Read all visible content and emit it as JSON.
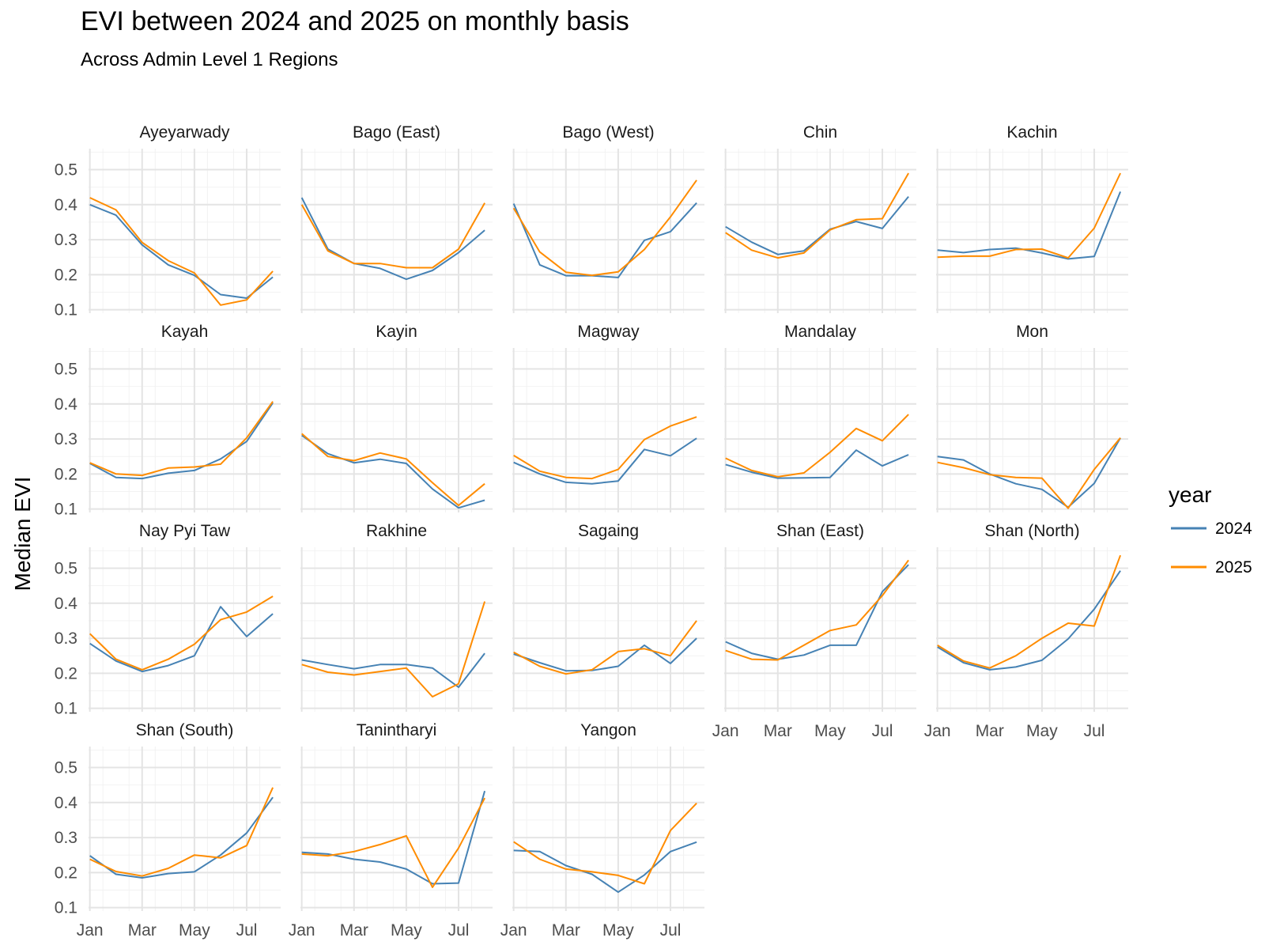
{
  "chart_data": {
    "type": "line",
    "title": "EVI between 2024 and 2025 on monthly basis",
    "subtitle": "Across Admin Level 1 Regions",
    "xlabel": "",
    "ylabel": "Median EVI",
    "x": [
      1,
      2,
      3,
      4,
      5,
      6,
      7,
      8
    ],
    "x_ticks": [
      {
        "value": 1,
        "label": "Jan"
      },
      {
        "value": 3,
        "label": "Mar"
      },
      {
        "value": 5,
        "label": "May"
      },
      {
        "value": 7,
        "label": "Jul"
      }
    ],
    "y_ticks": [
      {
        "value": 0.1,
        "label": "0.1"
      },
      {
        "value": 0.2,
        "label": "0.2"
      },
      {
        "value": 0.3,
        "label": "0.3"
      },
      {
        "value": 0.4,
        "label": "0.4"
      },
      {
        "value": 0.5,
        "label": "0.5"
      }
    ],
    "xlim": [
      0.95,
      8.3
    ],
    "ylim": [
      0.09,
      0.56
    ],
    "grid": true,
    "legend": {
      "title": "year",
      "position": "right",
      "items": [
        {
          "name": "2024",
          "color": "#4682b4"
        },
        {
          "name": "2025",
          "color": "#ff8c00"
        }
      ]
    },
    "panels": [
      {
        "name": "Ayeyarwady",
        "series": [
          {
            "name": "2024",
            "values": [
              0.4,
              0.37,
              0.285,
              0.228,
              0.198,
              0.143,
              0.133,
              0.193
            ]
          },
          {
            "name": "2025",
            "values": [
              0.42,
              0.385,
              0.292,
              0.24,
              0.205,
              0.113,
              0.128,
              0.21
            ]
          }
        ]
      },
      {
        "name": "Bago (East)",
        "series": [
          {
            "name": "2024",
            "values": [
              0.42,
              0.273,
              0.232,
              0.218,
              0.187,
              0.212,
              0.263,
              0.327
            ]
          },
          {
            "name": "2025",
            "values": [
              0.4,
              0.268,
              0.232,
              0.232,
              0.22,
              0.22,
              0.273,
              0.405
            ]
          }
        ]
      },
      {
        "name": "Bago (West)",
        "series": [
          {
            "name": "2024",
            "values": [
              0.403,
              0.228,
              0.197,
              0.197,
              0.192,
              0.298,
              0.323,
              0.405
            ]
          },
          {
            "name": "2025",
            "values": [
              0.39,
              0.265,
              0.207,
              0.198,
              0.208,
              0.272,
              0.365,
              0.47
            ]
          }
        ]
      },
      {
        "name": "Chin",
        "series": [
          {
            "name": "2024",
            "values": [
              0.337,
              0.293,
              0.258,
              0.268,
              0.33,
              0.352,
              0.332,
              0.423
            ]
          },
          {
            "name": "2025",
            "values": [
              0.32,
              0.27,
              0.248,
              0.262,
              0.328,
              0.357,
              0.36,
              0.49
            ]
          }
        ]
      },
      {
        "name": "Kachin",
        "series": [
          {
            "name": "2024",
            "values": [
              0.27,
              0.263,
              0.272,
              0.276,
              0.262,
              0.245,
              0.252,
              0.437
            ]
          },
          {
            "name": "2025",
            "values": [
              0.25,
              0.253,
              0.253,
              0.272,
              0.273,
              0.248,
              0.333,
              0.49
            ]
          }
        ]
      },
      {
        "name": "Kayah",
        "series": [
          {
            "name": "2024",
            "values": [
              0.23,
              0.19,
              0.187,
              0.202,
              0.21,
              0.243,
              0.293,
              0.403
            ]
          },
          {
            "name": "2025",
            "values": [
              0.232,
              0.2,
              0.196,
              0.217,
              0.22,
              0.228,
              0.303,
              0.407
            ]
          }
        ]
      },
      {
        "name": "Kayin",
        "series": [
          {
            "name": "2024",
            "values": [
              0.31,
              0.258,
              0.232,
              0.242,
              0.23,
              0.157,
              0.103,
              0.125
            ]
          },
          {
            "name": "2025",
            "values": [
              0.315,
              0.25,
              0.238,
              0.26,
              0.243,
              0.175,
              0.11,
              0.172
            ]
          }
        ]
      },
      {
        "name": "Magway",
        "series": [
          {
            "name": "2024",
            "values": [
              0.233,
              0.2,
              0.176,
              0.172,
              0.18,
              0.27,
              0.252,
              0.302
            ]
          },
          {
            "name": "2025",
            "values": [
              0.253,
              0.208,
              0.19,
              0.187,
              0.213,
              0.298,
              0.337,
              0.363
            ]
          }
        ]
      },
      {
        "name": "Mandalay",
        "series": [
          {
            "name": "2024",
            "values": [
              0.227,
              0.205,
              0.188,
              0.189,
              0.19,
              0.268,
              0.223,
              0.255
            ]
          },
          {
            "name": "2025",
            "values": [
              0.245,
              0.21,
              0.192,
              0.203,
              0.262,
              0.33,
              0.295,
              0.37
            ]
          }
        ]
      },
      {
        "name": "Mon",
        "series": [
          {
            "name": "2024",
            "values": [
              0.25,
              0.24,
              0.2,
              0.172,
              0.156,
              0.105,
              0.173,
              0.303
            ]
          },
          {
            "name": "2025",
            "values": [
              0.233,
              0.218,
              0.198,
              0.19,
              0.188,
              0.102,
              0.213,
              0.303
            ]
          }
        ]
      },
      {
        "name": "Nay Pyi Taw",
        "series": [
          {
            "name": "2024",
            "values": [
              0.285,
              0.235,
              0.205,
              0.222,
              0.25,
              0.39,
              0.305,
              0.37
            ]
          },
          {
            "name": "2025",
            "values": [
              0.313,
              0.24,
              0.21,
              0.24,
              0.283,
              0.353,
              0.375,
              0.42
            ]
          }
        ]
      },
      {
        "name": "Rakhine",
        "series": [
          {
            "name": "2024",
            "values": [
              0.238,
              0.225,
              0.213,
              0.225,
              0.225,
              0.215,
              0.16,
              0.257
            ]
          },
          {
            "name": "2025",
            "values": [
              0.225,
              0.203,
              0.195,
              0.205,
              0.215,
              0.133,
              0.17,
              0.405
            ]
          }
        ]
      },
      {
        "name": "Sagaing",
        "series": [
          {
            "name": "2024",
            "values": [
              0.255,
              0.23,
              0.207,
              0.208,
              0.22,
              0.28,
              0.228,
              0.3
            ]
          },
          {
            "name": "2025",
            "values": [
              0.26,
              0.22,
              0.198,
              0.21,
              0.262,
              0.27,
              0.25,
              0.35
            ]
          }
        ]
      },
      {
        "name": "Shan (East)",
        "series": [
          {
            "name": "2024",
            "values": [
              0.29,
              0.257,
              0.24,
              0.252,
              0.28,
              0.28,
              0.433,
              0.51
            ]
          },
          {
            "name": "2025",
            "values": [
              0.265,
              0.24,
              0.238,
              0.28,
              0.322,
              0.338,
              0.422,
              0.523
            ]
          }
        ]
      },
      {
        "name": "Shan (North)",
        "series": [
          {
            "name": "2024",
            "values": [
              0.275,
              0.23,
              0.21,
              0.218,
              0.237,
              0.298,
              0.383,
              0.493
            ]
          },
          {
            "name": "2025",
            "values": [
              0.28,
              0.235,
              0.215,
              0.25,
              0.3,
              0.343,
              0.335,
              0.537
            ]
          }
        ]
      },
      {
        "name": "Shan (South)",
        "series": [
          {
            "name": "2024",
            "values": [
              0.248,
              0.195,
              0.185,
              0.197,
              0.202,
              0.25,
              0.313,
              0.415
            ]
          },
          {
            "name": "2025",
            "values": [
              0.238,
              0.203,
              0.19,
              0.212,
              0.25,
              0.242,
              0.277,
              0.443
            ]
          }
        ]
      },
      {
        "name": "Tanintharyi",
        "series": [
          {
            "name": "2024",
            "values": [
              0.258,
              0.253,
              0.238,
              0.23,
              0.21,
              0.168,
              0.17,
              0.433
            ]
          },
          {
            "name": "2025",
            "values": [
              0.253,
              0.248,
              0.26,
              0.28,
              0.305,
              0.158,
              0.27,
              0.413
            ]
          }
        ]
      },
      {
        "name": "Yangon",
        "series": [
          {
            "name": "2024",
            "values": [
              0.263,
              0.26,
              0.22,
              0.195,
              0.144,
              0.193,
              0.26,
              0.287
            ]
          },
          {
            "name": "2025",
            "values": [
              0.288,
              0.238,
              0.21,
              0.202,
              0.192,
              0.168,
              0.32,
              0.398
            ]
          }
        ]
      }
    ]
  }
}
